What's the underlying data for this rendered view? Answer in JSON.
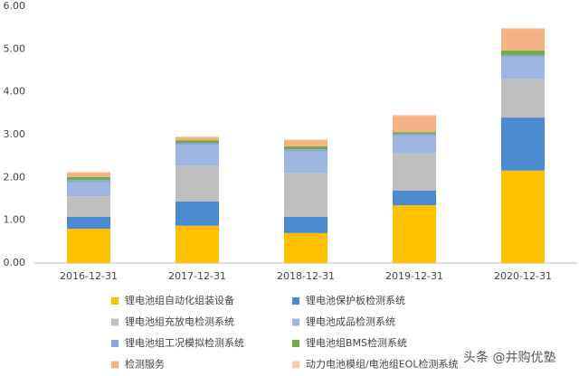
{
  "chart_data": {
    "type": "stacked_bar",
    "categories": [
      "2016-12-31",
      "2017-12-31",
      "2018-12-31",
      "2019-12-31",
      "2020-12-31"
    ],
    "series": [
      {
        "name": "锂电池组自动化组装设备",
        "color": "#FFC000",
        "values": [
          0.8,
          0.87,
          0.7,
          1.35,
          2.16
        ]
      },
      {
        "name": "锂电池保护板检测系统",
        "color": "#4A8BD2",
        "values": [
          0.28,
          0.57,
          0.38,
          0.34,
          1.24
        ]
      },
      {
        "name": "锂电池组充放电检测系统",
        "color": "#BFBFBF",
        "values": [
          0.48,
          0.84,
          1.03,
          0.87,
          0.91
        ]
      },
      {
        "name": "锂电池成品检测系统",
        "color": "#9FB6E2",
        "values": [
          0.33,
          0.48,
          0.5,
          0.41,
          0.5
        ]
      },
      {
        "name": "锂电池组工况模拟检测系统",
        "color": "#8AA6DA",
        "values": [
          0.05,
          0.05,
          0.05,
          0.05,
          0.05
        ]
      },
      {
        "name": "锂电池组BMS检测系统",
        "color": "#70AD47",
        "values": [
          0.07,
          0.06,
          0.07,
          0.04,
          0.11
        ]
      },
      {
        "name": "检测服务",
        "color": "#F4B183",
        "values": [
          0.1,
          0.07,
          0.14,
          0.38,
          0.5
        ]
      },
      {
        "name": "动力电池模组/电池组EOL检测系统",
        "color": "#F8CBAD",
        "values": [
          0.02,
          0.02,
          0.02,
          0.02,
          0.02
        ]
      }
    ],
    "ylim": [
      0,
      6
    ],
    "yticks": [
      {
        "value": 0,
        "label": "0.00"
      },
      {
        "value": 1,
        "label": "1.00"
      },
      {
        "value": 2,
        "label": "2.00"
      },
      {
        "value": 3,
        "label": "3.00"
      },
      {
        "value": 4,
        "label": "4.00"
      },
      {
        "value": 5,
        "label": "5.00"
      },
      {
        "value": 6,
        "label": "6.00"
      }
    ],
    "grid": false,
    "watermark": "头条 @井购优塾"
  }
}
